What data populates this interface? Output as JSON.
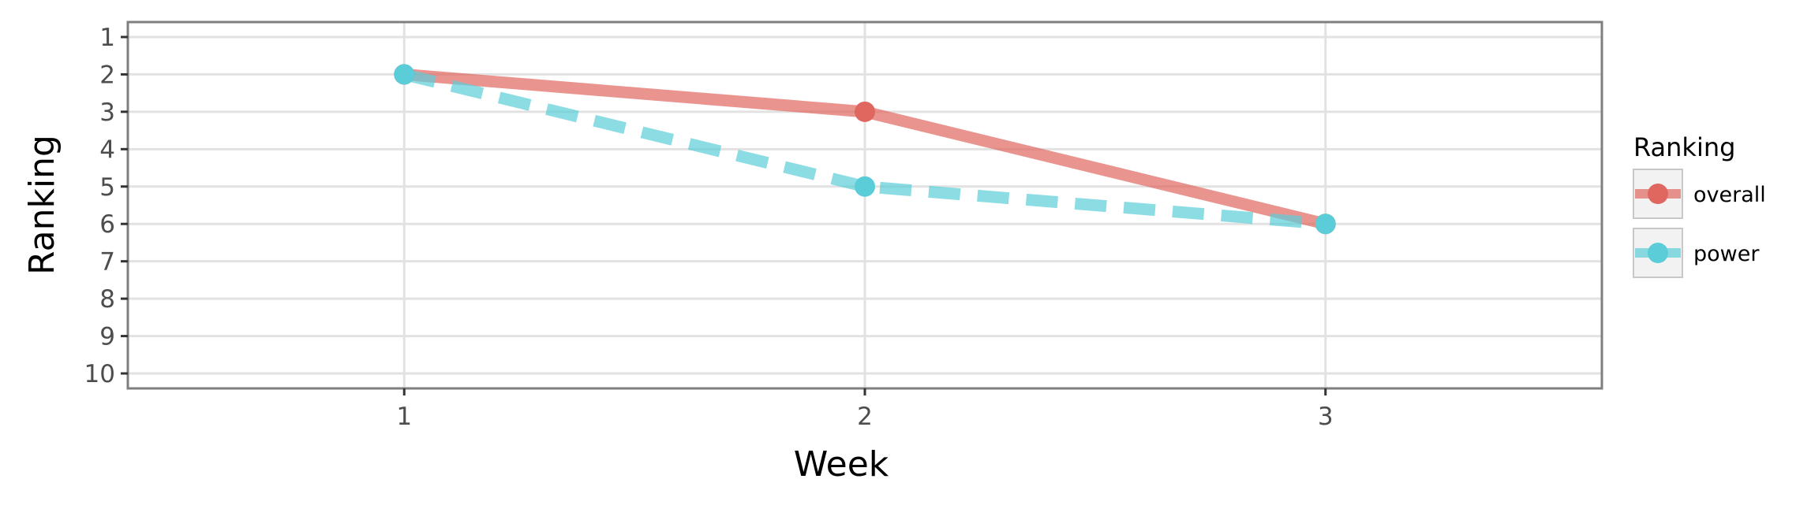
{
  "chart_data": {
    "type": "line",
    "xlabel": "Week",
    "ylabel": "Ranking",
    "x": [
      1,
      2,
      3
    ],
    "xlim": [
      0.4,
      3.6
    ],
    "ylim": [
      10.4,
      0.6
    ],
    "y_reversed": true,
    "xticks": [
      "1",
      "2",
      "3"
    ],
    "yticks": [
      "1",
      "2",
      "3",
      "4",
      "5",
      "6",
      "7",
      "8",
      "9",
      "10"
    ],
    "grid": true,
    "legend": {
      "title": "Ranking",
      "position": "right"
    },
    "series": [
      {
        "name": "overall",
        "values": [
          2,
          3,
          6
        ],
        "color": "#e06660",
        "line_style": "solid"
      },
      {
        "name": "power",
        "values": [
          2,
          5,
          6
        ],
        "color": "#5bcdd8",
        "line_style": "dashed"
      }
    ]
  }
}
